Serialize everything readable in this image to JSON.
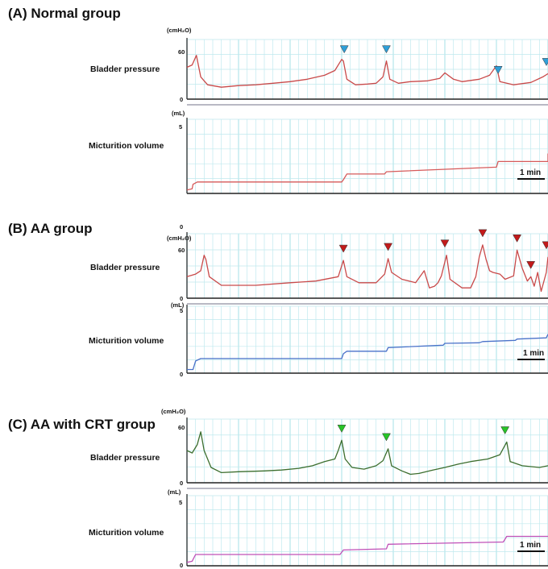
{
  "colors": {
    "grid": "#bfe9ee",
    "axis": "#222222",
    "normal_pressure": "#c94a4a",
    "normal_volume": "#d65a5a",
    "normal_marker": "#2f9fd8",
    "aa_pressure": "#c94a4a",
    "aa_volume": "#4a72c9",
    "aa_marker": "#c21b1b",
    "crt_pressure": "#3c6e2e",
    "crt_volume": "#c050b8",
    "crt_marker": "#27c427"
  },
  "chart_data": [
    {
      "type": "line",
      "title": "(A) Normal group",
      "pressure": {
        "label": "Bladder pressure",
        "unit": "(cmH₂O)",
        "ticks": [
          "0",
          "60"
        ],
        "ylim": [
          0,
          75
        ],
        "xlim": [
          0,
          21
        ],
        "points": [
          [
            0,
            40
          ],
          [
            0.3,
            43
          ],
          [
            0.55,
            55
          ],
          [
            0.8,
            28
          ],
          [
            1.2,
            18
          ],
          [
            2,
            15
          ],
          [
            3,
            17
          ],
          [
            4,
            18
          ],
          [
            5,
            20
          ],
          [
            6,
            22
          ],
          [
            7,
            25
          ],
          [
            8,
            30
          ],
          [
            8.6,
            36
          ],
          [
            9,
            50
          ],
          [
            9.1,
            48
          ],
          [
            9.3,
            25
          ],
          [
            9.8,
            18
          ],
          [
            10.5,
            19
          ],
          [
            11,
            20
          ],
          [
            11.4,
            28
          ],
          [
            11.6,
            48
          ],
          [
            11.8,
            25
          ],
          [
            12.3,
            20
          ],
          [
            13,
            22
          ],
          [
            14,
            23
          ],
          [
            14.7,
            26
          ],
          [
            15,
            33
          ],
          [
            15.5,
            25
          ],
          [
            16,
            22
          ],
          [
            17,
            25
          ],
          [
            17.6,
            30
          ],
          [
            18,
            42
          ],
          [
            18.2,
            22
          ],
          [
            19,
            18
          ],
          [
            20,
            21
          ],
          [
            20.7,
            28
          ],
          [
            21,
            32
          ]
        ],
        "markers": [
          9.15,
          11.6,
          18.1,
          21
        ]
      },
      "volume": {
        "label": "Micturition volume",
        "unit": "(mL)",
        "ticks": [
          "0",
          "5"
        ],
        "ylim": [
          0,
          6.5
        ],
        "xlim": [
          0,
          21
        ],
        "points": [
          [
            0,
            0.3
          ],
          [
            0.3,
            0.4
          ],
          [
            0.35,
            0.8
          ],
          [
            0.6,
            1.0
          ],
          [
            9,
            1.0
          ],
          [
            9.1,
            1.2
          ],
          [
            9.3,
            1.7
          ],
          [
            11.5,
            1.7
          ],
          [
            11.6,
            1.9
          ],
          [
            18,
            2.3
          ],
          [
            18.1,
            2.8
          ],
          [
            21,
            2.8
          ],
          [
            21,
            3.5
          ]
        ],
        "scalebar_label": "1 min"
      }
    },
    {
      "type": "line",
      "title": "(B) AA group",
      "pressure": {
        "label": "Bladder pressure",
        "unit": "(cmH₂O)",
        "top_tick": "0",
        "ticks": [
          "0",
          "60"
        ],
        "ylim": [
          0,
          75
        ],
        "xlim": [
          0,
          21
        ],
        "points": [
          [
            0,
            25
          ],
          [
            0.5,
            28
          ],
          [
            0.8,
            32
          ],
          [
            1,
            50
          ],
          [
            1.1,
            45
          ],
          [
            1.3,
            25
          ],
          [
            2,
            15
          ],
          [
            4,
            15
          ],
          [
            6,
            18
          ],
          [
            7.5,
            20
          ],
          [
            8.8,
            25
          ],
          [
            9.1,
            44
          ],
          [
            9.3,
            25
          ],
          [
            10,
            18
          ],
          [
            11,
            18
          ],
          [
            11.5,
            28
          ],
          [
            11.7,
            46
          ],
          [
            11.9,
            30
          ],
          [
            12.5,
            22
          ],
          [
            13.3,
            18
          ],
          [
            13.8,
            32
          ],
          [
            14.1,
            12
          ],
          [
            14.4,
            14
          ],
          [
            14.6,
            18
          ],
          [
            14.8,
            26
          ],
          [
            15.1,
            50
          ],
          [
            15.3,
            22
          ],
          [
            16,
            12
          ],
          [
            16.5,
            12
          ],
          [
            16.8,
            25
          ],
          [
            17,
            48
          ],
          [
            17.2,
            62
          ],
          [
            17.4,
            45
          ],
          [
            17.6,
            32
          ],
          [
            17.8,
            30
          ],
          [
            18.2,
            28
          ],
          [
            18.5,
            22
          ],
          [
            19,
            26
          ],
          [
            19.2,
            56
          ],
          [
            19.5,
            35
          ],
          [
            19.8,
            20
          ],
          [
            20,
            25
          ],
          [
            20.2,
            14
          ],
          [
            20.4,
            30
          ],
          [
            20.6,
            8
          ],
          [
            20.9,
            30
          ],
          [
            21,
            48
          ]
        ],
        "markers": [
          9.1,
          11.7,
          15,
          17.2,
          19.2,
          20,
          21
        ]
      },
      "volume": {
        "label": "Micturition volume",
        "unit": "(mL)",
        "ticks": [
          "0",
          "5"
        ],
        "ylim": [
          0,
          5.5
        ],
        "xlim": [
          0,
          21
        ],
        "points": [
          [
            0,
            0.3
          ],
          [
            0.35,
            0.3
          ],
          [
            0.5,
            1.0
          ],
          [
            0.8,
            1.2
          ],
          [
            9,
            1.2
          ],
          [
            9.1,
            1.6
          ],
          [
            9.3,
            1.8
          ],
          [
            11.6,
            1.8
          ],
          [
            11.7,
            2.1
          ],
          [
            14.9,
            2.3
          ],
          [
            15,
            2.45
          ],
          [
            17,
            2.5
          ],
          [
            17.2,
            2.6
          ],
          [
            19.1,
            2.7
          ],
          [
            19.2,
            2.8
          ],
          [
            20.9,
            2.9
          ],
          [
            21,
            3.2
          ]
        ],
        "scalebar_label": "1 min"
      }
    },
    {
      "type": "line",
      "title": "(C) AA with CRT group",
      "pressure": {
        "label": "Bladder pressure",
        "unit": "(cmH₂O)",
        "ticks": [
          "0",
          "60"
        ],
        "ylim": [
          0,
          75
        ],
        "xlim": [
          0,
          21
        ],
        "points": [
          [
            0,
            38
          ],
          [
            0.3,
            35
          ],
          [
            0.6,
            45
          ],
          [
            0.8,
            60
          ],
          [
            1,
            38
          ],
          [
            1.4,
            18
          ],
          [
            2,
            12
          ],
          [
            3,
            13
          ],
          [
            4.5,
            14
          ],
          [
            5.5,
            15
          ],
          [
            6.5,
            17
          ],
          [
            7.3,
            20
          ],
          [
            8,
            25
          ],
          [
            8.6,
            28
          ],
          [
            8.8,
            38
          ],
          [
            9,
            50
          ],
          [
            9.2,
            28
          ],
          [
            9.6,
            18
          ],
          [
            10.3,
            16
          ],
          [
            11,
            20
          ],
          [
            11.4,
            26
          ],
          [
            11.7,
            40
          ],
          [
            11.9,
            20
          ],
          [
            12.5,
            14
          ],
          [
            13,
            10
          ],
          [
            13.5,
            11
          ],
          [
            14.3,
            15
          ],
          [
            15,
            18
          ],
          [
            15.8,
            22
          ],
          [
            16.5,
            25
          ],
          [
            17.5,
            28
          ],
          [
            18.2,
            33
          ],
          [
            18.6,
            48
          ],
          [
            18.8,
            25
          ],
          [
            19.5,
            20
          ],
          [
            20.5,
            18
          ],
          [
            21,
            20
          ]
        ],
        "markers": [
          9,
          11.6,
          18.5
        ]
      },
      "volume": {
        "label": "Micturition volume",
        "unit": "(mL)",
        "ticks": [
          "0",
          "5"
        ],
        "ylim": [
          0,
          6.2
        ],
        "xlim": [
          0,
          21
        ],
        "points": [
          [
            0,
            0.3
          ],
          [
            0.3,
            0.4
          ],
          [
            0.5,
            1.0
          ],
          [
            0.8,
            1.0
          ],
          [
            8.9,
            1.0
          ],
          [
            9.1,
            1.4
          ],
          [
            11.6,
            1.5
          ],
          [
            11.7,
            1.9
          ],
          [
            18.4,
            2.1
          ],
          [
            18.6,
            2.6
          ],
          [
            21,
            2.6
          ]
        ],
        "scalebar_label": "1 min"
      }
    }
  ]
}
